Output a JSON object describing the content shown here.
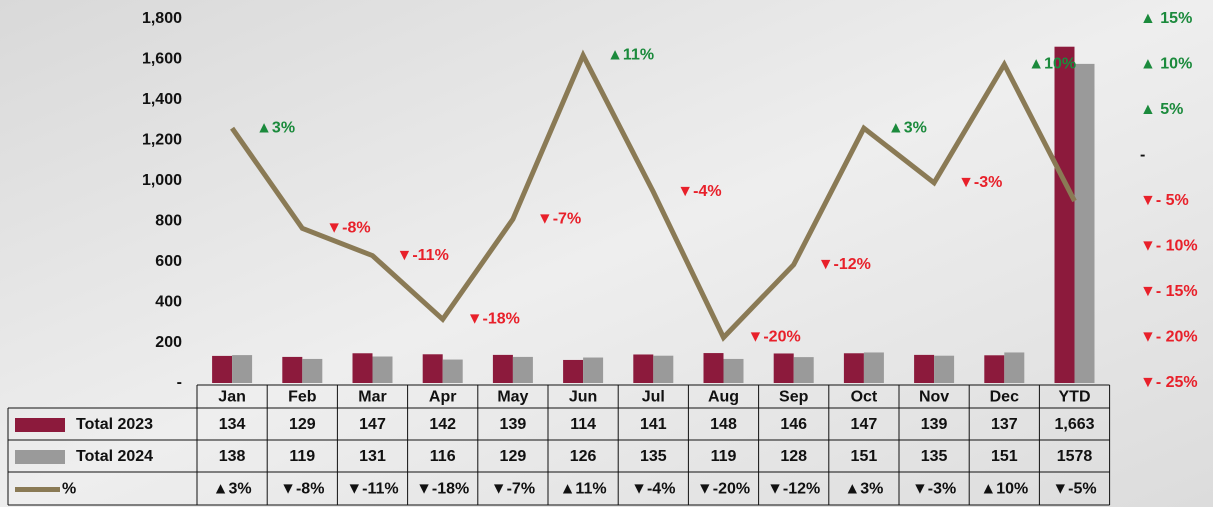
{
  "chart_data": {
    "type": "bar-line-table",
    "categories": [
      "Jan",
      "Feb",
      "Mar",
      "Apr",
      "May",
      "Jun",
      "Jul",
      "Aug",
      "Sep",
      "Oct",
      "Nov",
      "Dec",
      "YTD"
    ],
    "series": [
      {
        "name": "Total 2023",
        "color": "#8c1a3c",
        "values": [
          134,
          129,
          147,
          142,
          139,
          114,
          141,
          148,
          146,
          147,
          139,
          137,
          1663
        ],
        "value_labels": [
          "134",
          "129",
          "147",
          "142",
          "139",
          "114",
          "141",
          "148",
          "146",
          "147",
          "139",
          "137",
          "1,663"
        ]
      },
      {
        "name": "Total 2024",
        "color": "#9a9a9a",
        "values": [
          138,
          119,
          131,
          116,
          129,
          126,
          135,
          119,
          128,
          151,
          135,
          151,
          1578
        ]
      },
      {
        "name": "%",
        "color": "#8a7a55",
        "axis": "y2",
        "values": [
          3,
          -8,
          -11,
          -18,
          -7,
          11,
          -4,
          -20,
          -12,
          3,
          -3,
          10,
          -5
        ],
        "value_labels": [
          "▲3%",
          "▼-8%",
          "▼-11%",
          "▼-18%",
          "▼-7%",
          "▲11%",
          "▼-4%",
          "▼-20%",
          "▼-12%",
          "▲3%",
          "▼-3%",
          "▲10%",
          "▼-5%"
        ]
      }
    ],
    "ylim": [
      0,
      1800
    ],
    "yticks": [
      {
        "value": 0,
        "label": "-"
      },
      200,
      400,
      600,
      800,
      {
        "value": 1000,
        "label": "1,000"
      },
      {
        "value": 1200,
        "label": "1,200"
      },
      {
        "value": 1400,
        "label": "1,400"
      },
      {
        "value": 1600,
        "label": "1,600"
      },
      {
        "value": 1800,
        "label": "1,800"
      }
    ],
    "y2lim": [
      -25,
      15
    ],
    "y2ticks": [
      {
        "value": 15,
        "label": "▲ 15%"
      },
      {
        "value": 10,
        "label": "▲ 10%"
      },
      {
        "value": 5,
        "label": "▲ 5%"
      },
      {
        "value": 0,
        "label": "-"
      },
      {
        "value": -5,
        "label": "▼- 5%"
      },
      {
        "value": -10,
        "label": "▼- 10%"
      },
      {
        "value": -15,
        "label": "▼- 15%"
      },
      {
        "value": -20,
        "label": "▼- 20%"
      },
      {
        "value": -25,
        "label": "▼- 25%"
      }
    ],
    "up_color": "#1b8a3c",
    "down_color": "#e8202a"
  }
}
